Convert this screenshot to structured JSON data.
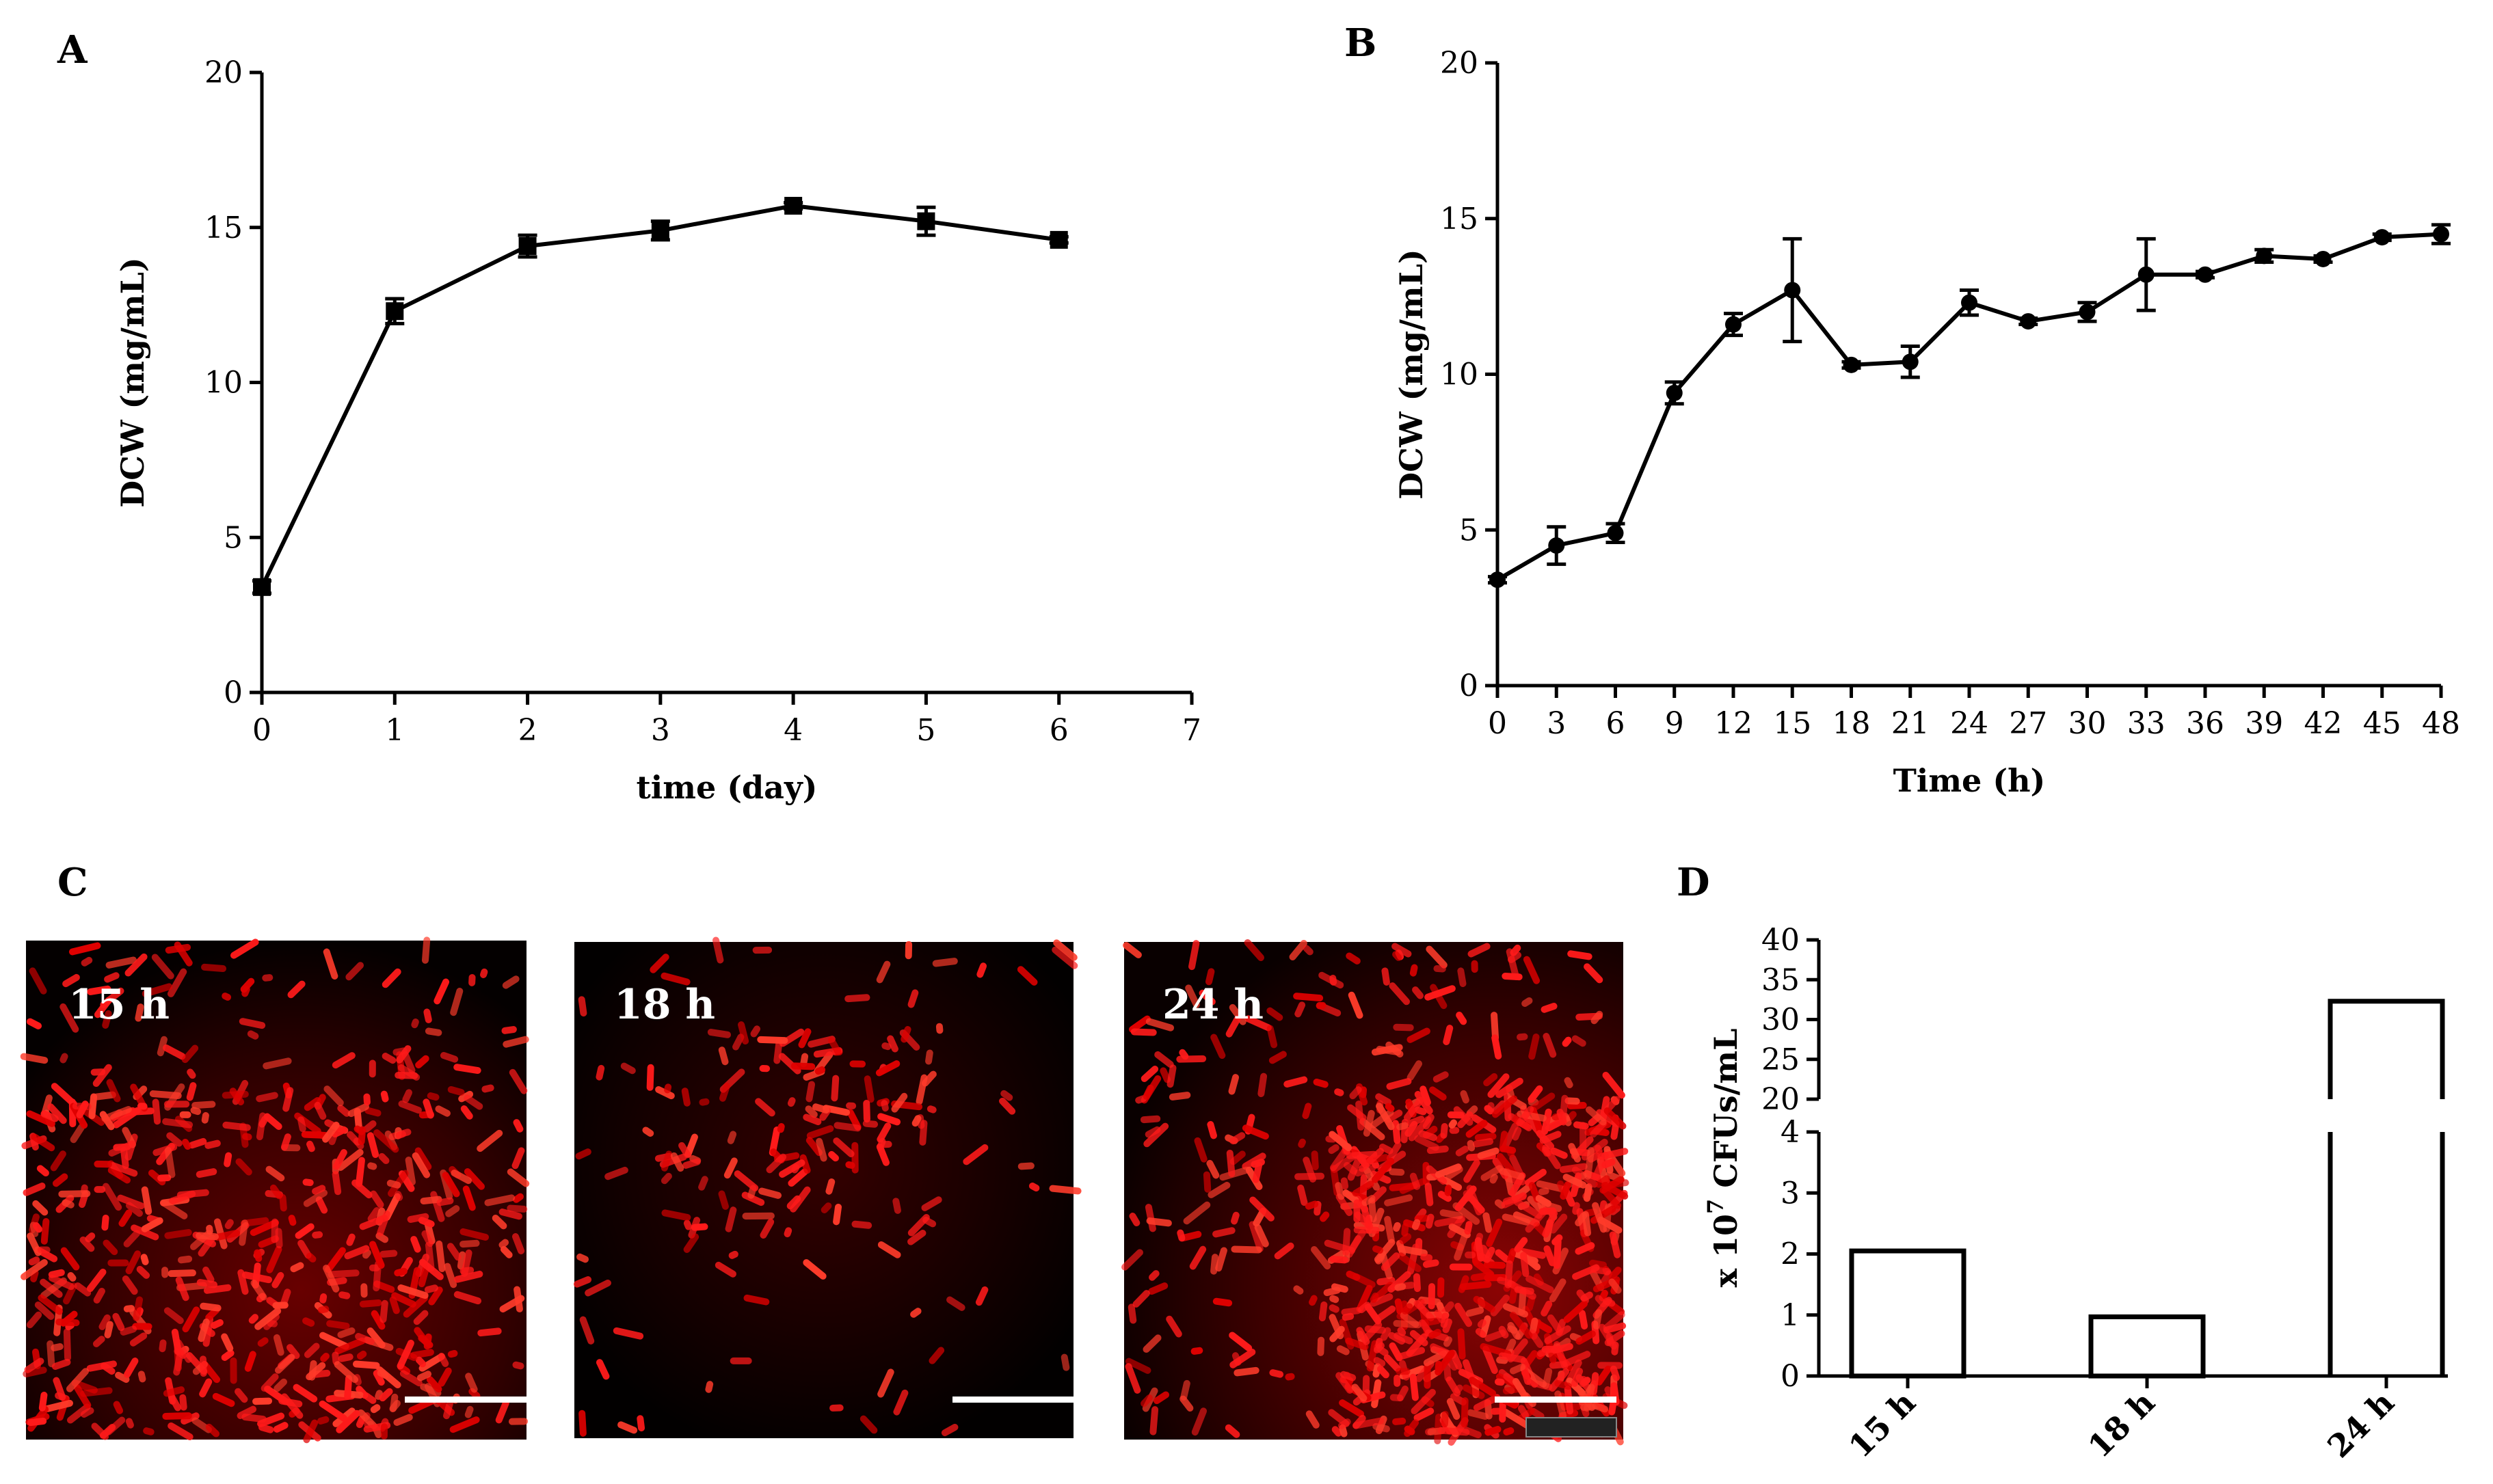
{
  "panels": {
    "A": "A",
    "B": "B",
    "C": "C",
    "D": "D"
  },
  "chart_data": [
    {
      "id": "A",
      "type": "line",
      "title": "",
      "xlabel": "time (day)",
      "ylabel": "DCW (mg/mL)",
      "xlim": [
        0,
        7
      ],
      "ylim": [
        0,
        20
      ],
      "xticks": [
        "0",
        "1",
        "2",
        "3",
        "4",
        "5",
        "6",
        "7"
      ],
      "yticks": [
        "0",
        "5",
        "10",
        "15",
        "20"
      ],
      "marker": "square",
      "series": [
        {
          "name": "DCW",
          "x": [
            0,
            1,
            2,
            3,
            4,
            5,
            6
          ],
          "y": [
            3.4,
            12.3,
            14.4,
            14.9,
            15.7,
            15.2,
            14.6
          ],
          "err": [
            0.2,
            0.4,
            0.35,
            0.3,
            0.1,
            0.45,
            0.1
          ]
        }
      ]
    },
    {
      "id": "B",
      "type": "line",
      "title": "",
      "xlabel": "Time (h)",
      "ylabel": "DCW (mg/mL)",
      "xlim": [
        0,
        48
      ],
      "ylim": [
        0,
        20
      ],
      "xticks": [
        "0",
        "3",
        "6",
        "9",
        "12",
        "15",
        "18",
        "21",
        "24",
        "27",
        "30",
        "33",
        "36",
        "39",
        "42",
        "45",
        "48"
      ],
      "yticks": [
        "0",
        "5",
        "10",
        "15",
        "20"
      ],
      "marker": "circle",
      "series": [
        {
          "name": "DCW",
          "x": [
            0,
            3,
            6,
            9,
            12,
            15,
            18,
            21,
            24,
            27,
            30,
            33,
            36,
            39,
            42,
            45,
            48
          ],
          "y": [
            3.4,
            4.5,
            4.9,
            9.4,
            11.6,
            12.7,
            10.3,
            10.4,
            12.3,
            11.7,
            12.0,
            13.2,
            13.2,
            13.8,
            13.7,
            14.4,
            14.5
          ],
          "err": [
            0.1,
            0.6,
            0.3,
            0.35,
            0.35,
            1.65,
            0.1,
            0.5,
            0.4,
            0.1,
            0.3,
            1.15,
            0.1,
            0.2,
            0.1,
            0.1,
            0.3
          ]
        }
      ]
    },
    {
      "id": "D",
      "type": "bar",
      "title": "",
      "xlabel": "",
      "ylabel_prefix": "x 10",
      "ylabel_exp": "7",
      "ylabel_suffix": " CFUs/mL",
      "categories": [
        "15 h",
        "18 h",
        "24 h"
      ],
      "values": [
        2.05,
        0.97,
        32.3
      ],
      "axis_break": [
        4,
        20
      ],
      "lower_ylim": [
        0,
        4
      ],
      "upper_ylim": [
        20,
        40
      ],
      "lower_yticks": [
        "0",
        "1",
        "2",
        "3",
        "4"
      ],
      "upper_yticks": [
        "20",
        "25",
        "30",
        "35",
        "40"
      ]
    }
  ],
  "micrographs": [
    {
      "label": "15 h"
    },
    {
      "label": "18 h"
    },
    {
      "label": "24 h"
    }
  ]
}
